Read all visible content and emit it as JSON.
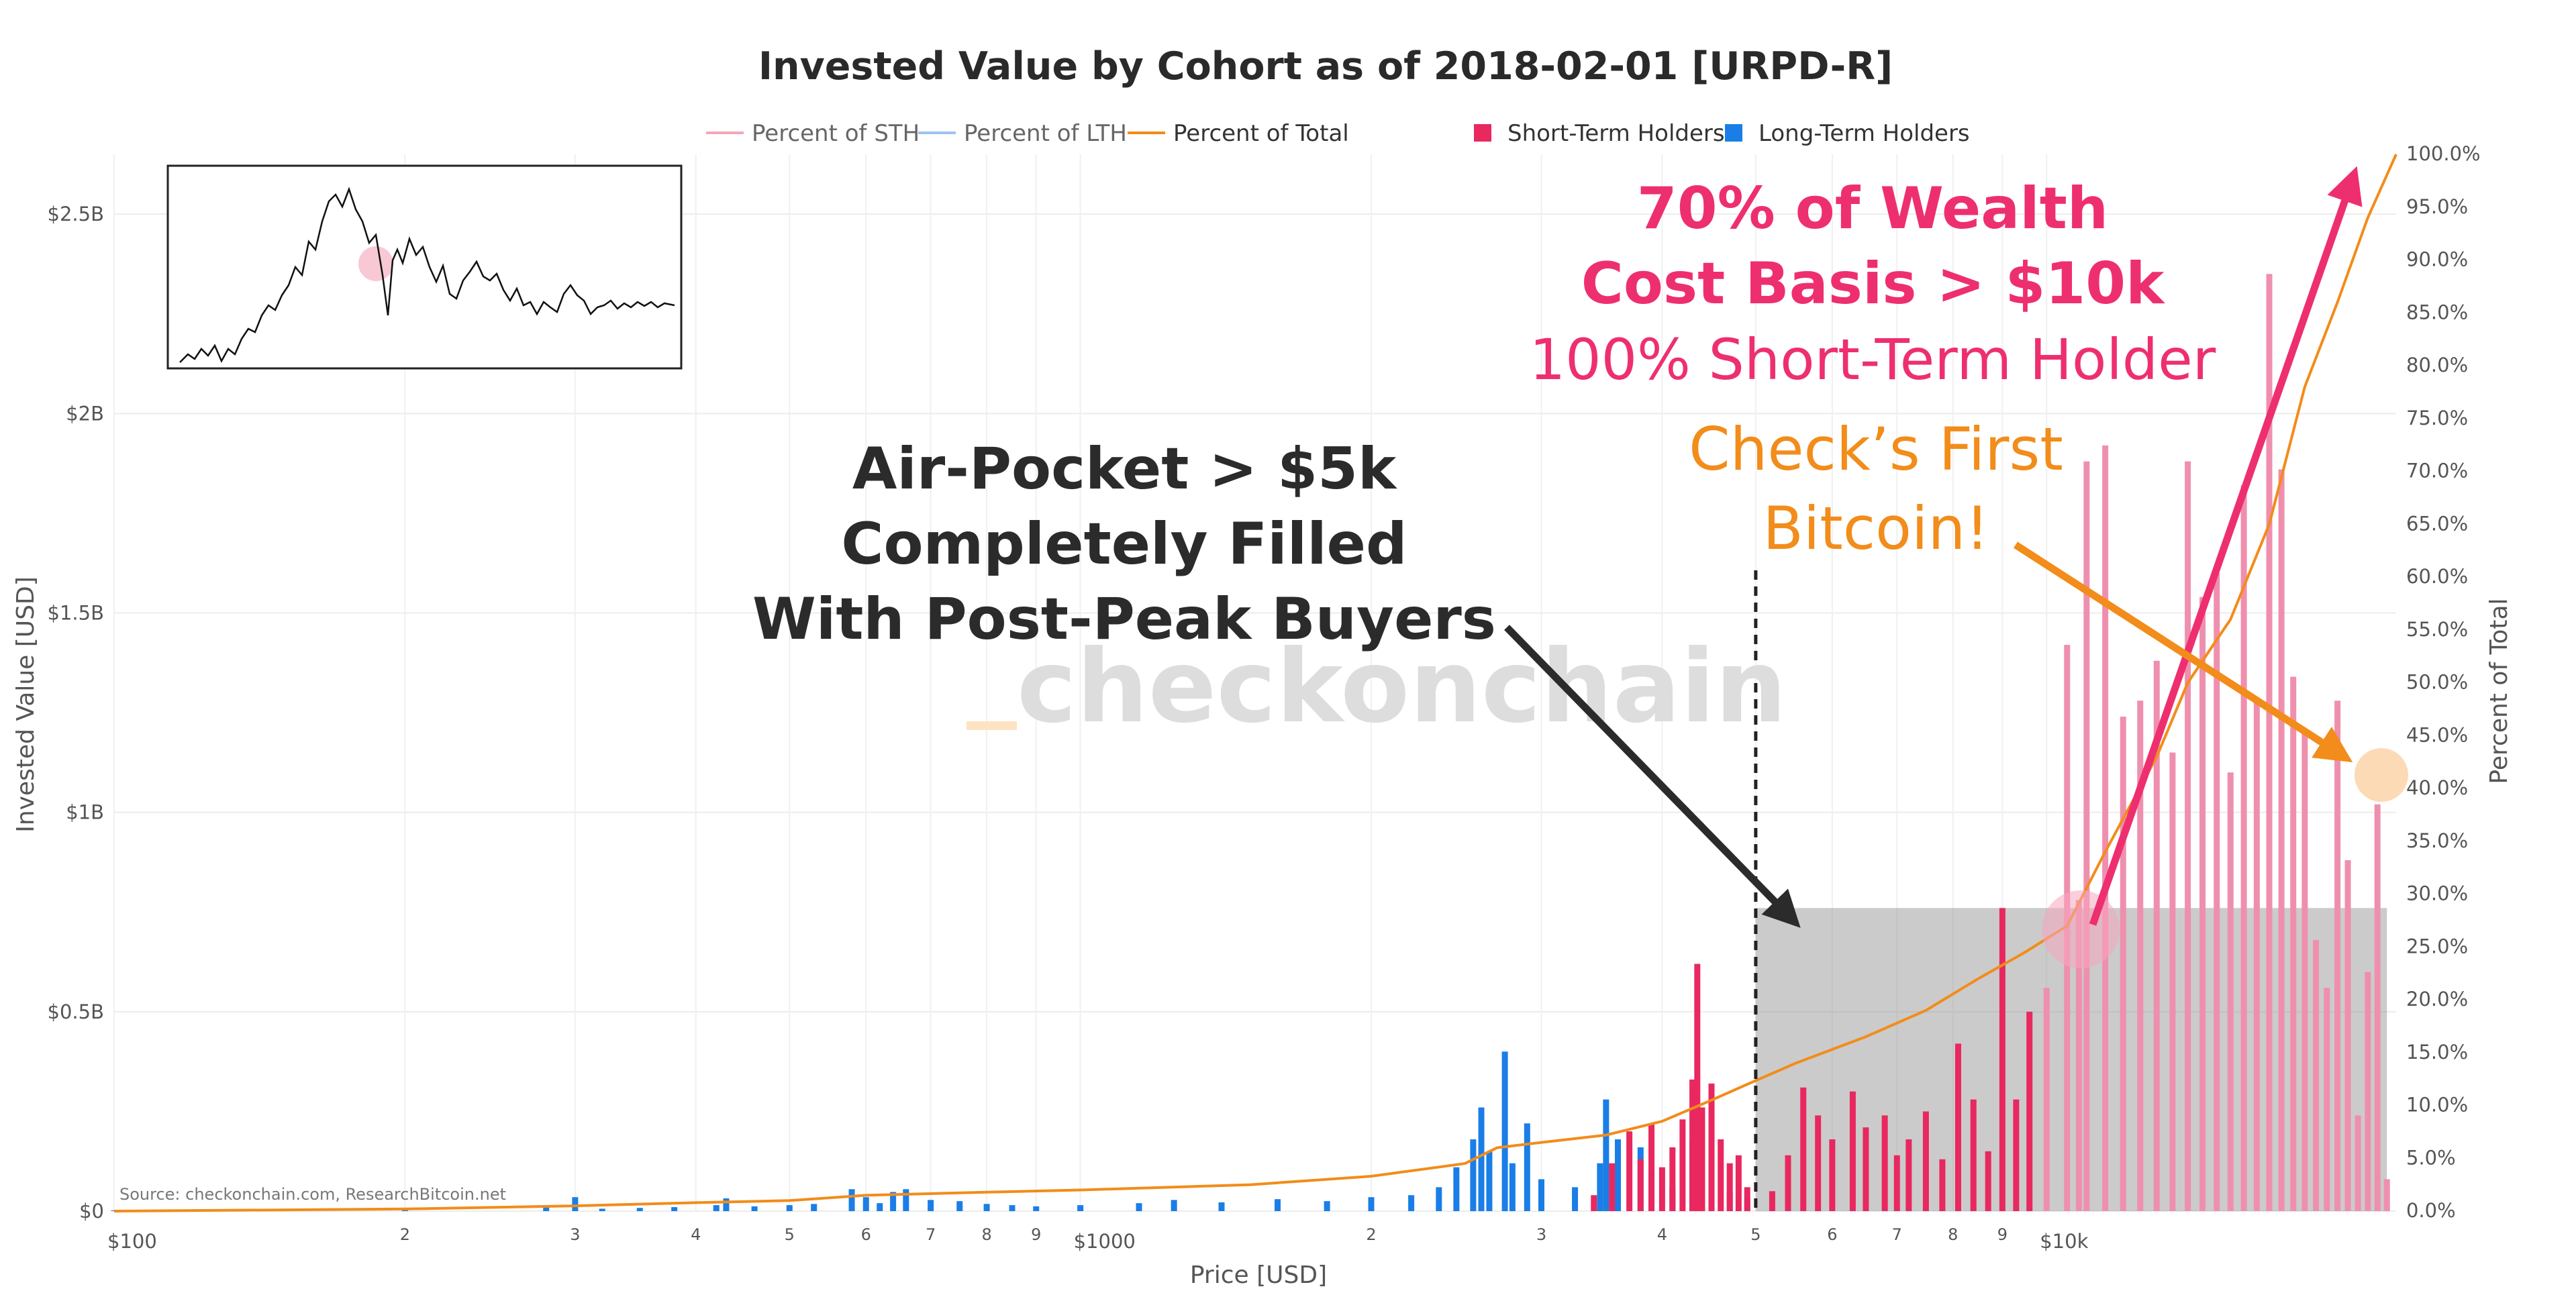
{
  "chart_data": {
    "type": "bar",
    "title": "Invested Value by Cohort as of 2018-02-01 [URPD-R]",
    "xlabel": "Price [USD]",
    "ylabel": "Invested Value [USD]",
    "y2label": "Percent of Total",
    "xscale": "log",
    "xlim": [
      100,
      23000
    ],
    "ylim": [
      0,
      2650000000
    ],
    "y2lim": [
      0,
      100
    ],
    "grid": true,
    "legend_position": "top-center",
    "legend": [
      {
        "name": "Percent of STH",
        "kind": "line",
        "color": "#f4a7b9"
      },
      {
        "name": "Percent of LTH",
        "kind": "line",
        "color": "#9cc3f0"
      },
      {
        "name": "Percent of Total",
        "kind": "line",
        "color": "#f28c1a"
      },
      {
        "name": "Short-Term Holders",
        "kind": "bar",
        "color": "#e8285f"
      },
      {
        "name": "Long-Term Holders",
        "kind": "bar",
        "color": "#1a7ee6"
      }
    ],
    "x_ticks": [
      {
        "v": 100,
        "label": "$100",
        "major": true
      },
      {
        "v": 200,
        "label": "2"
      },
      {
        "v": 300,
        "label": "3"
      },
      {
        "v": 400,
        "label": "4"
      },
      {
        "v": 500,
        "label": "5"
      },
      {
        "v": 600,
        "label": "6"
      },
      {
        "v": 700,
        "label": "7"
      },
      {
        "v": 800,
        "label": "8"
      },
      {
        "v": 900,
        "label": "9"
      },
      {
        "v": 1000,
        "label": "$1000",
        "major": true
      },
      {
        "v": 2000,
        "label": "2"
      },
      {
        "v": 3000,
        "label": "3"
      },
      {
        "v": 4000,
        "label": "4"
      },
      {
        "v": 5000,
        "label": "5"
      },
      {
        "v": 6000,
        "label": "6"
      },
      {
        "v": 7000,
        "label": "7"
      },
      {
        "v": 8000,
        "label": "8"
      },
      {
        "v": 9000,
        "label": "9"
      },
      {
        "v": 10000,
        "label": "$10k",
        "major": true
      }
    ],
    "y_ticks": [
      {
        "v": 0,
        "label": "$0"
      },
      {
        "v": 500000000,
        "label": "$0.5B"
      },
      {
        "v": 1000000000,
        "label": "$1B"
      },
      {
        "v": 1500000000,
        "label": "$1.5B"
      },
      {
        "v": 2000000000,
        "label": "$2B"
      },
      {
        "v": 2500000000,
        "label": "$2.5B"
      }
    ],
    "y2_ticks": [
      "0.0%",
      "5.0%",
      "10.0%",
      "15.0%",
      "20.0%",
      "25.0%",
      "30.0%",
      "35.0%",
      "40.0%",
      "45.0%",
      "50.0%",
      "55.0%",
      "60.0%",
      "65.0%",
      "70.0%",
      "75.0%",
      "80.0%",
      "85.0%",
      "90.0%",
      "95.0%",
      "100.0%"
    ],
    "series": [
      {
        "name": "Long-Term Holders",
        "color": "#1a7ee6",
        "points": [
          [
            100,
            2000000
          ],
          [
            150,
            3000000
          ],
          [
            200,
            5000000
          ],
          [
            280,
            12000000
          ],
          [
            300,
            35000000
          ],
          [
            320,
            6000000
          ],
          [
            350,
            8000000
          ],
          [
            380,
            10000000
          ],
          [
            420,
            15000000
          ],
          [
            430,
            32000000
          ],
          [
            460,
            12000000
          ],
          [
            500,
            15000000
          ],
          [
            530,
            18000000
          ],
          [
            580,
            55000000
          ],
          [
            600,
            35000000
          ],
          [
            620,
            20000000
          ],
          [
            640,
            48000000
          ],
          [
            660,
            55000000
          ],
          [
            700,
            28000000
          ],
          [
            750,
            25000000
          ],
          [
            800,
            18000000
          ],
          [
            850,
            15000000
          ],
          [
            900,
            12000000
          ],
          [
            1000,
            15000000
          ],
          [
            1150,
            20000000
          ],
          [
            1250,
            28000000
          ],
          [
            1400,
            22000000
          ],
          [
            1600,
            30000000
          ],
          [
            1800,
            25000000
          ],
          [
            2000,
            35000000
          ],
          [
            2200,
            40000000
          ],
          [
            2350,
            60000000
          ],
          [
            2450,
            110000000
          ],
          [
            2550,
            180000000
          ],
          [
            2600,
            260000000
          ],
          [
            2650,
            150000000
          ],
          [
            2750,
            400000000
          ],
          [
            2800,
            120000000
          ],
          [
            2900,
            220000000
          ],
          [
            3000,
            80000000
          ],
          [
            3250,
            60000000
          ],
          [
            3450,
            120000000
          ],
          [
            3500,
            280000000
          ],
          [
            3600,
            180000000
          ],
          [
            3800,
            160000000
          ],
          [
            3900,
            100000000
          ],
          [
            4100,
            60000000
          ],
          [
            4300,
            180000000
          ],
          [
            4500,
            140000000
          ],
          [
            4700,
            50000000
          ],
          [
            4900,
            30000000
          ]
        ]
      },
      {
        "name": "Short-Term Holders",
        "color": "#e8285f",
        "points": [
          [
            3400,
            40000000
          ],
          [
            3550,
            120000000
          ],
          [
            3700,
            200000000
          ],
          [
            3800,
            130000000
          ],
          [
            3900,
            220000000
          ],
          [
            4000,
            110000000
          ],
          [
            4100,
            160000000
          ],
          [
            4200,
            230000000
          ],
          [
            4300,
            330000000
          ],
          [
            4350,
            620000000
          ],
          [
            4400,
            260000000
          ],
          [
            4500,
            320000000
          ],
          [
            4600,
            180000000
          ],
          [
            4700,
            120000000
          ],
          [
            4800,
            140000000
          ],
          [
            4900,
            60000000
          ],
          [
            5200,
            50000000
          ],
          [
            5400,
            140000000
          ],
          [
            5600,
            310000000
          ],
          [
            5800,
            240000000
          ],
          [
            6000,
            180000000
          ],
          [
            6300,
            300000000
          ],
          [
            6500,
            210000000
          ],
          [
            6800,
            240000000
          ],
          [
            7000,
            140000000
          ],
          [
            7200,
            180000000
          ],
          [
            7500,
            250000000
          ],
          [
            7800,
            130000000
          ],
          [
            8100,
            420000000
          ],
          [
            8400,
            280000000
          ],
          [
            8700,
            150000000
          ],
          [
            9000,
            760000000
          ],
          [
            9300,
            280000000
          ],
          [
            9600,
            500000000
          ],
          [
            10000,
            560000000
          ],
          [
            10500,
            1420000000
          ],
          [
            10800,
            780000000
          ],
          [
            11000,
            1880000000
          ],
          [
            11500,
            1920000000
          ],
          [
            12000,
            1240000000
          ],
          [
            12500,
            1280000000
          ],
          [
            13000,
            1380000000
          ],
          [
            13500,
            1150000000
          ],
          [
            14000,
            1880000000
          ],
          [
            14500,
            1540000000
          ],
          [
            15000,
            1600000000
          ],
          [
            15500,
            1100000000
          ],
          [
            16000,
            1820000000
          ],
          [
            16500,
            1280000000
          ],
          [
            17000,
            2350000000
          ],
          [
            17500,
            1860000000
          ],
          [
            18000,
            1340000000
          ],
          [
            18500,
            1200000000
          ],
          [
            19000,
            680000000
          ],
          [
            19500,
            560000000
          ],
          [
            20000,
            1280000000
          ],
          [
            20500,
            880000000
          ],
          [
            21000,
            240000000
          ],
          [
            21500,
            600000000
          ],
          [
            22000,
            1020000000
          ],
          [
            22500,
            80000000
          ]
        ]
      },
      {
        "name": "Percent of Total",
        "color": "#f28c1a",
        "points": [
          [
            100,
            0.0
          ],
          [
            200,
            0.2
          ],
          [
            300,
            0.5
          ],
          [
            400,
            0.8
          ],
          [
            500,
            1.0
          ],
          [
            600,
            1.5
          ],
          [
            800,
            1.8
          ],
          [
            1000,
            2.0
          ],
          [
            1500,
            2.5
          ],
          [
            2000,
            3.3
          ],
          [
            2500,
            4.5
          ],
          [
            2700,
            6.0
          ],
          [
            3000,
            6.5
          ],
          [
            3500,
            7.2
          ],
          [
            4000,
            8.5
          ],
          [
            4500,
            10.5
          ],
          [
            4900,
            12.0
          ],
          [
            5500,
            14.0
          ],
          [
            6500,
            16.5
          ],
          [
            7500,
            19.0
          ],
          [
            8500,
            22.0
          ],
          [
            9500,
            24.5
          ],
          [
            10500,
            27.0
          ],
          [
            11500,
            34.0
          ],
          [
            13000,
            43.0
          ],
          [
            14000,
            50.0
          ],
          [
            15500,
            56.0
          ],
          [
            17000,
            65.0
          ],
          [
            18500,
            78.0
          ],
          [
            20000,
            86.0
          ],
          [
            21500,
            94.0
          ],
          [
            23000,
            100.0
          ]
        ]
      }
    ],
    "shaded_region": {
      "x": [
        5000,
        22500
      ],
      "y": [
        0,
        760000000
      ]
    },
    "vline": 5000
  },
  "annotations": {
    "air_pocket": [
      "Air-Pocket > $5k",
      "Completely Filled",
      "With Post-Peak Buyers"
    ],
    "wealth": [
      "70% of Wealth",
      "Cost Basis > $10k"
    ],
    "sth": "100% Short-Term Holder",
    "first_bitcoin": [
      "Check’s First",
      "Bitcoin!"
    ],
    "watermark": "checkonchain",
    "source": "Source: checkonchain.com, ResearchBitcoin.net"
  }
}
